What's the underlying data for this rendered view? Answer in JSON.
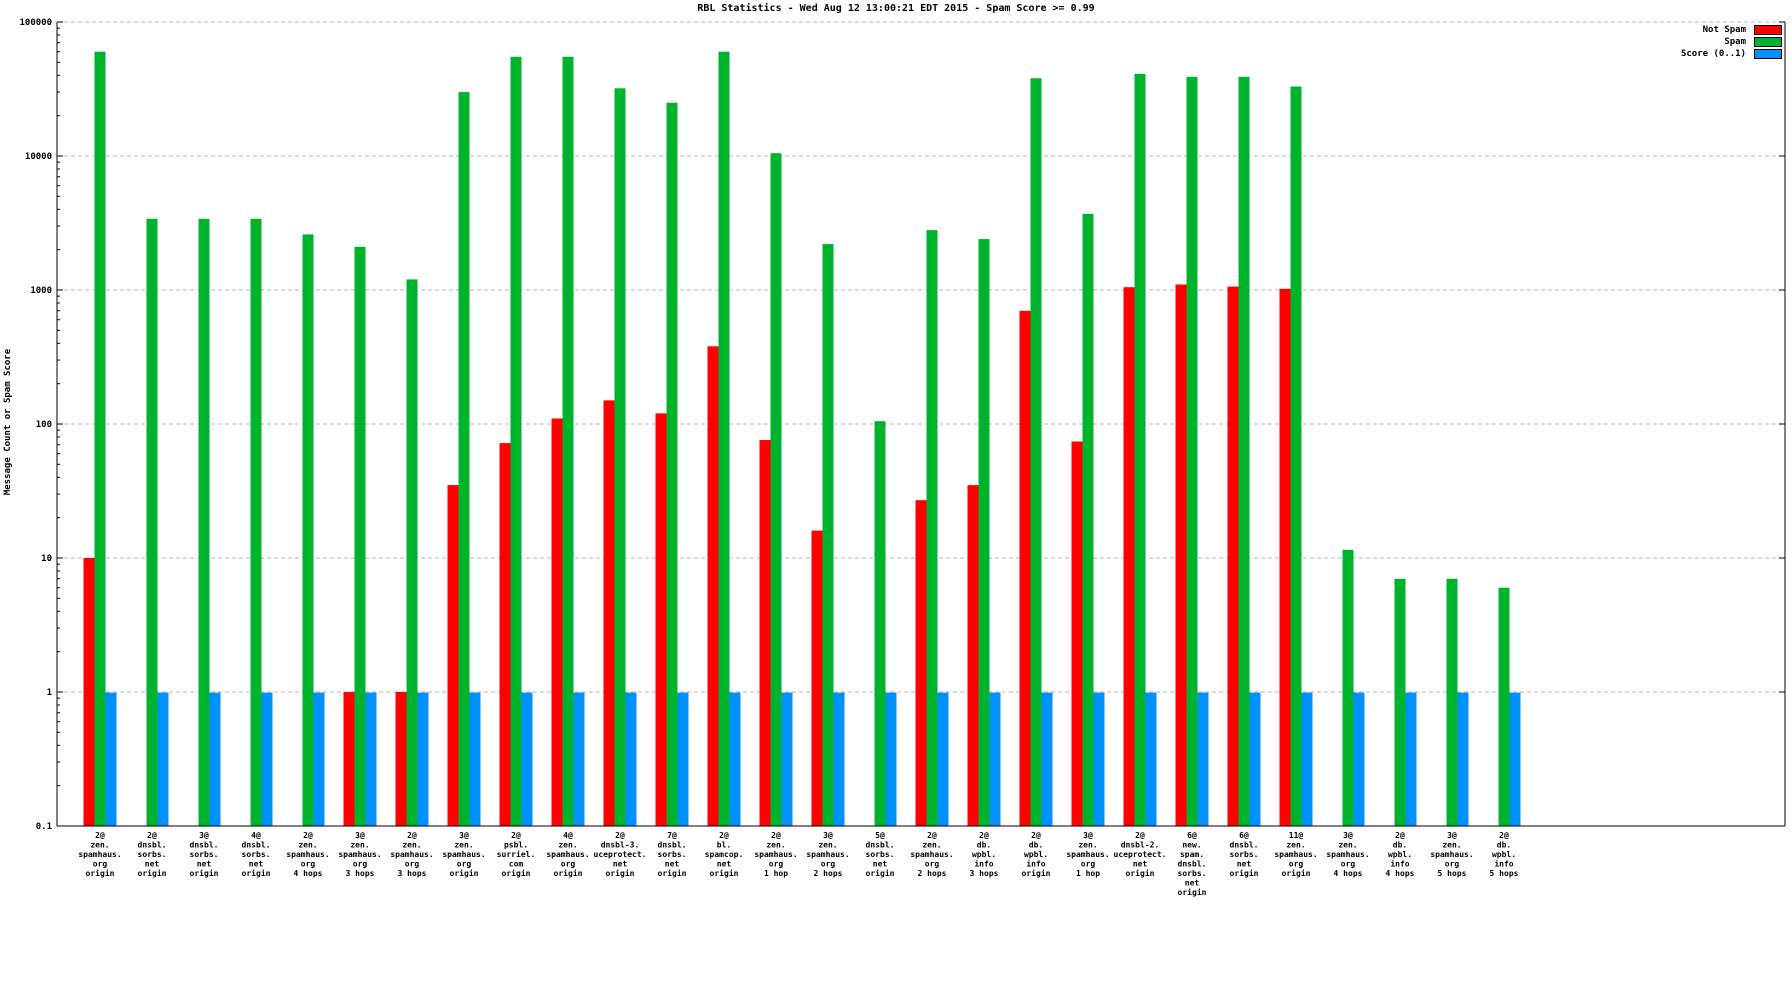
{
  "chart_data": {
    "type": "bar",
    "title": "RBL Statistics - Wed Aug 12 13:00:21 EDT 2015 - Spam Score >= 0.99",
    "ylabel": "Message Count or Spam Score",
    "xlabel": "",
    "yscale": "log",
    "ylim": [
      0.1,
      100000
    ],
    "yticks": [
      0.1,
      1,
      10,
      100,
      1000,
      10000,
      100000
    ],
    "grid": "dashed-horizontal",
    "legend_position": "top-right",
    "categories": [
      [
        "2@",
        "zen.",
        "spamhaus.",
        "org",
        "origin"
      ],
      [
        "2@",
        "dnsbl.",
        "sorbs.",
        "net",
        "origin"
      ],
      [
        "3@",
        "dnsbl.",
        "sorbs.",
        "net",
        "origin"
      ],
      [
        "4@",
        "dnsbl.",
        "sorbs.",
        "net",
        "origin"
      ],
      [
        "2@",
        "zen.",
        "spamhaus.",
        "org",
        "4 hops"
      ],
      [
        "3@",
        "zen.",
        "spamhaus.",
        "org",
        "3 hops"
      ],
      [
        "2@",
        "zen.",
        "spamhaus.",
        "org",
        "3 hops"
      ],
      [
        "3@",
        "zen.",
        "spamhaus.",
        "org",
        "origin"
      ],
      [
        "2@",
        "psbl.",
        "surriel.",
        "com",
        "origin"
      ],
      [
        "4@",
        "zen.",
        "spamhaus.",
        "org",
        "origin"
      ],
      [
        "2@",
        "dnsbl-3.",
        "uceprotect.",
        "net",
        "origin"
      ],
      [
        "7@",
        "dnsbl.",
        "sorbs.",
        "net",
        "origin"
      ],
      [
        "2@",
        "bl.",
        "spamcop.",
        "net",
        "origin"
      ],
      [
        "2@",
        "zen.",
        "spamhaus.",
        "org",
        "1 hop"
      ],
      [
        "3@",
        "zen.",
        "spamhaus.",
        "org",
        "2 hops"
      ],
      [
        "5@",
        "dnsbl.",
        "sorbs.",
        "net",
        "origin"
      ],
      [
        "2@",
        "zen.",
        "spamhaus.",
        "org",
        "2 hops"
      ],
      [
        "2@",
        "db.",
        "wpbl.",
        "info",
        "3 hops"
      ],
      [
        "2@",
        "db.",
        "wpbl.",
        "info",
        "origin"
      ],
      [
        "3@",
        "zen.",
        "spamhaus.",
        "org",
        "1 hop"
      ],
      [
        "2@",
        "dnsbl-2.",
        "uceprotect.",
        "net",
        "origin"
      ],
      [
        "6@",
        "new.",
        "spam.",
        "dnsbl.",
        "sorbs.",
        "net",
        "origin"
      ],
      [
        "6@",
        "dnsbl.",
        "sorbs.",
        "net",
        "origin"
      ],
      [
        "11@",
        "zen.",
        "spamhaus.",
        "org",
        "origin"
      ],
      [
        "3@",
        "zen.",
        "spamhaus.",
        "org",
        "4 hops"
      ],
      [
        "2@",
        "db.",
        "wpbl.",
        "info",
        "4 hops"
      ],
      [
        "3@",
        "zen.",
        "spamhaus.",
        "org",
        "5 hops"
      ],
      [
        "2@",
        "db.",
        "wpbl.",
        "info",
        "5 hops"
      ]
    ],
    "series": [
      {
        "name": "Not Spam",
        "color": "#ff0000",
        "values": [
          10,
          0,
          0,
          0,
          0,
          1,
          1,
          35,
          72,
          110,
          150,
          120,
          380,
          76,
          16,
          0,
          27,
          35,
          700,
          74,
          1050,
          1100,
          1060,
          1020,
          0,
          0,
          0,
          0
        ]
      },
      {
        "name": "Spam",
        "color": "#00b32c",
        "values": [
          60000,
          3400,
          3400,
          3400,
          2600,
          2100,
          1200,
          30000,
          55000,
          55000,
          32000,
          25000,
          60000,
          10500,
          2200,
          105,
          2800,
          2400,
          38000,
          3700,
          41000,
          39000,
          39000,
          33000,
          11.5,
          7,
          7,
          6
        ]
      },
      {
        "name": "Score (0..1)",
        "color": "#0090ff",
        "values": [
          0.99,
          0.99,
          0.99,
          0.99,
          0.99,
          0.99,
          0.99,
          0.99,
          0.99,
          0.99,
          0.99,
          0.99,
          0.99,
          0.99,
          0.99,
          0.99,
          0.99,
          0.99,
          0.99,
          0.99,
          0.99,
          0.99,
          0.99,
          0.99,
          0.99,
          0.99,
          0.99,
          0.99
        ]
      }
    ]
  }
}
